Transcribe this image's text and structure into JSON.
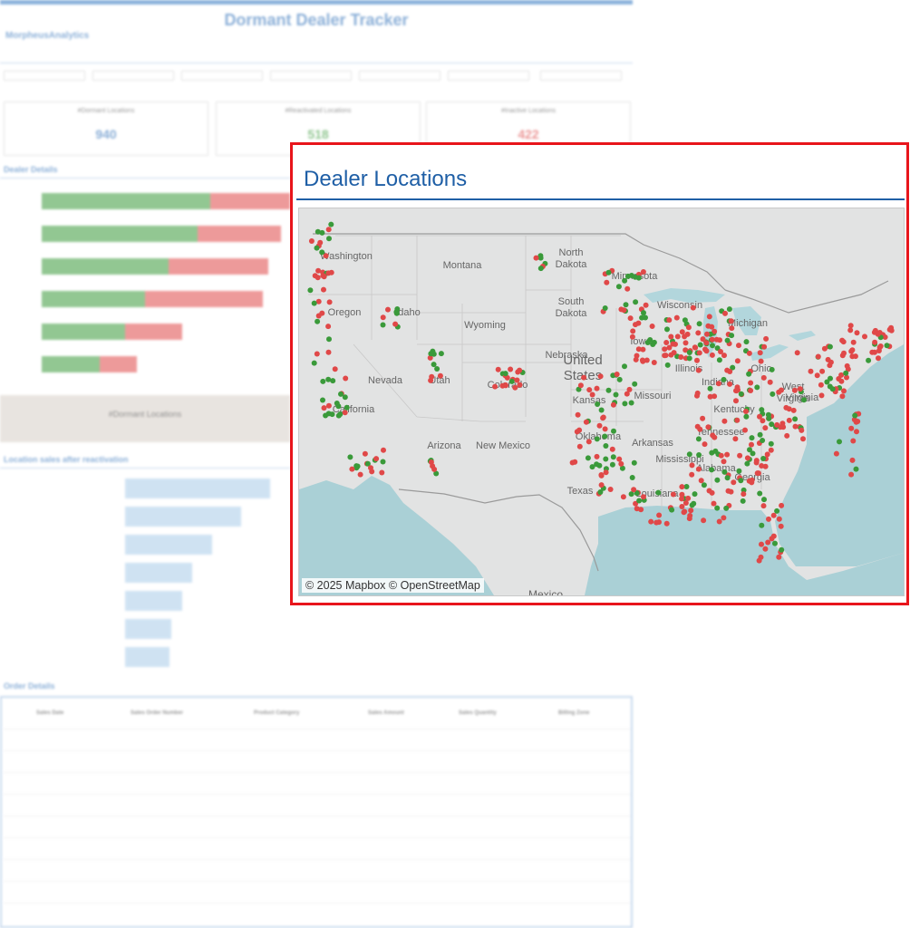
{
  "background": {
    "dashboard_title": "Dormant Dealer Tracker",
    "logo_text": "MorpheusAnalytics",
    "kpis": [
      {
        "label": "#Dormant Locations",
        "value": "940",
        "color": "#2e6fb8"
      },
      {
        "label": "#Reactivated Locations",
        "value": "518",
        "color": "#3a9a3a"
      },
      {
        "label": "#Inactive Locations",
        "value": "422",
        "color": "#d44"
      }
    ],
    "sections": {
      "dealer_details": "Dealer Details",
      "location_sales": "Location sales after reactivation",
      "order_details": "Order Details",
      "grey_box": "#Dormant Locations"
    },
    "table_headers": [
      "Sales Date",
      "Sales Order Number",
      "Product Category",
      "Sales Amount",
      "Sales Quantity",
      "Billing Zone"
    ]
  },
  "map_panel": {
    "title": "Dealer Locations",
    "attribution": "© 2025 Mapbox © OpenStreetMap",
    "legend_colors": {
      "reactivated": "#3a9a3a",
      "inactive": "#e04848"
    },
    "state_labels": [
      "Washington",
      "Montana",
      "North Dakota",
      "South Dakota",
      "Minnesota",
      "Oregon",
      "Idaho",
      "Wyoming",
      "Nevada",
      "Utah",
      "Colorado",
      "California",
      "Arizona",
      "New Mexico",
      "Texas",
      "Oklahoma",
      "Kansas",
      "Arkansas",
      "Mississippi",
      "Louisiana",
      "Iowa",
      "Illinois",
      "Michigan",
      "Indiana",
      "Ohio",
      "Kentucky",
      "Tennessee",
      "Georgia",
      "West Virginia",
      "Virginia",
      "Alabama",
      "Missouri",
      "Nebraska",
      "Wisconsin"
    ],
    "country_label": "United States",
    "mexico_label": "Mexico"
  }
}
